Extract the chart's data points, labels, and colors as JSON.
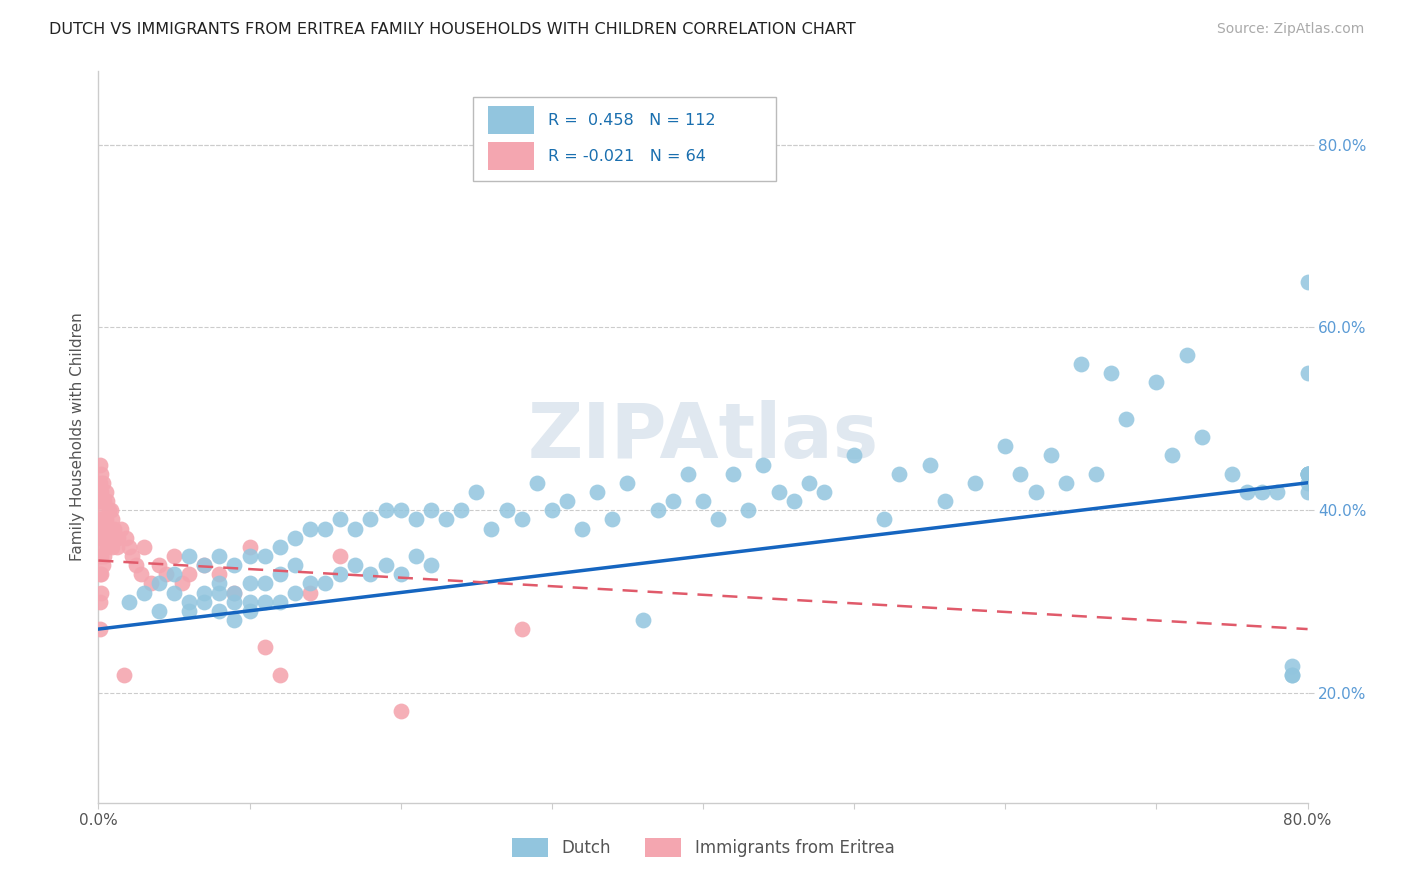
{
  "title": "DUTCH VS IMMIGRANTS FROM ERITREA FAMILY HOUSEHOLDS WITH CHILDREN CORRELATION CHART",
  "source": "Source: ZipAtlas.com",
  "ylabel": "Family Households with Children",
  "xlim": [
    0.0,
    0.8
  ],
  "ylim": [
    0.08,
    0.88
  ],
  "yticks": [
    0.2,
    0.4,
    0.6,
    0.8
  ],
  "ytick_labels": [
    "20.0%",
    "40.0%",
    "60.0%",
    "80.0%"
  ],
  "xticks": [
    0.0,
    0.1,
    0.2,
    0.3,
    0.4,
    0.5,
    0.6,
    0.7,
    0.8
  ],
  "xtick_labels": [
    "0.0%",
    "",
    "",
    "",
    "",
    "",
    "",
    "",
    "80.0%"
  ],
  "dutch_color": "#92c5de",
  "eritrea_color": "#f4a6b0",
  "dutch_line_color": "#1565c0",
  "eritrea_line_color": "#e05a6a",
  "legend_dutch_R": "R =  0.458",
  "legend_dutch_N": "N = 112",
  "legend_eritrea_R": "R = -0.021",
  "legend_eritrea_N": "N = 64",
  "watermark": "ZIPAtlas",
  "dutch_x": [
    0.02,
    0.03,
    0.04,
    0.04,
    0.05,
    0.05,
    0.06,
    0.06,
    0.06,
    0.07,
    0.07,
    0.07,
    0.08,
    0.08,
    0.08,
    0.08,
    0.09,
    0.09,
    0.09,
    0.09,
    0.1,
    0.1,
    0.1,
    0.1,
    0.11,
    0.11,
    0.11,
    0.12,
    0.12,
    0.12,
    0.13,
    0.13,
    0.13,
    0.14,
    0.14,
    0.15,
    0.15,
    0.16,
    0.16,
    0.17,
    0.17,
    0.18,
    0.18,
    0.19,
    0.19,
    0.2,
    0.2,
    0.21,
    0.21,
    0.22,
    0.22,
    0.23,
    0.24,
    0.25,
    0.26,
    0.27,
    0.28,
    0.29,
    0.3,
    0.31,
    0.32,
    0.33,
    0.34,
    0.35,
    0.36,
    0.37,
    0.38,
    0.39,
    0.4,
    0.41,
    0.42,
    0.43,
    0.44,
    0.45,
    0.46,
    0.47,
    0.48,
    0.5,
    0.52,
    0.53,
    0.55,
    0.56,
    0.58,
    0.6,
    0.61,
    0.62,
    0.63,
    0.64,
    0.65,
    0.66,
    0.67,
    0.68,
    0.7,
    0.71,
    0.72,
    0.73,
    0.75,
    0.76,
    0.77,
    0.78,
    0.79,
    0.79,
    0.79,
    0.8,
    0.8,
    0.8,
    0.8,
    0.8,
    0.8,
    0.8,
    0.8,
    0.8
  ],
  "dutch_y": [
    0.3,
    0.31,
    0.32,
    0.29,
    0.33,
    0.31,
    0.35,
    0.3,
    0.29,
    0.34,
    0.31,
    0.3,
    0.35,
    0.32,
    0.29,
    0.31,
    0.34,
    0.31,
    0.3,
    0.28,
    0.35,
    0.32,
    0.3,
    0.29,
    0.35,
    0.32,
    0.3,
    0.36,
    0.33,
    0.3,
    0.37,
    0.34,
    0.31,
    0.38,
    0.32,
    0.38,
    0.32,
    0.39,
    0.33,
    0.38,
    0.34,
    0.39,
    0.33,
    0.4,
    0.34,
    0.4,
    0.33,
    0.39,
    0.35,
    0.4,
    0.34,
    0.39,
    0.4,
    0.42,
    0.38,
    0.4,
    0.39,
    0.43,
    0.4,
    0.41,
    0.38,
    0.42,
    0.39,
    0.43,
    0.28,
    0.4,
    0.41,
    0.44,
    0.41,
    0.39,
    0.44,
    0.4,
    0.45,
    0.42,
    0.41,
    0.43,
    0.42,
    0.46,
    0.39,
    0.44,
    0.45,
    0.41,
    0.43,
    0.47,
    0.44,
    0.42,
    0.46,
    0.43,
    0.56,
    0.44,
    0.55,
    0.5,
    0.54,
    0.46,
    0.57,
    0.48,
    0.44,
    0.42,
    0.42,
    0.42,
    0.22,
    0.22,
    0.23,
    0.44,
    0.44,
    0.44,
    0.44,
    0.42,
    0.44,
    0.43,
    0.55,
    0.65
  ],
  "eritrea_x": [
    0.001,
    0.001,
    0.001,
    0.001,
    0.001,
    0.001,
    0.001,
    0.001,
    0.002,
    0.002,
    0.002,
    0.002,
    0.002,
    0.002,
    0.002,
    0.003,
    0.003,
    0.003,
    0.003,
    0.003,
    0.004,
    0.004,
    0.004,
    0.004,
    0.005,
    0.005,
    0.005,
    0.006,
    0.006,
    0.006,
    0.007,
    0.007,
    0.008,
    0.008,
    0.009,
    0.009,
    0.01,
    0.011,
    0.012,
    0.013,
    0.015,
    0.017,
    0.018,
    0.02,
    0.022,
    0.025,
    0.028,
    0.03,
    0.035,
    0.04,
    0.045,
    0.05,
    0.055,
    0.06,
    0.07,
    0.08,
    0.09,
    0.1,
    0.11,
    0.12,
    0.14,
    0.16,
    0.2,
    0.28
  ],
  "eritrea_y": [
    0.45,
    0.43,
    0.41,
    0.38,
    0.35,
    0.33,
    0.3,
    0.27,
    0.44,
    0.42,
    0.39,
    0.37,
    0.35,
    0.33,
    0.31,
    0.43,
    0.4,
    0.38,
    0.36,
    0.34,
    0.41,
    0.39,
    0.37,
    0.35,
    0.42,
    0.39,
    0.37,
    0.41,
    0.38,
    0.36,
    0.4,
    0.37,
    0.4,
    0.37,
    0.39,
    0.36,
    0.38,
    0.37,
    0.36,
    0.37,
    0.38,
    0.22,
    0.37,
    0.36,
    0.35,
    0.34,
    0.33,
    0.36,
    0.32,
    0.34,
    0.33,
    0.35,
    0.32,
    0.33,
    0.34,
    0.33,
    0.31,
    0.36,
    0.25,
    0.22,
    0.31,
    0.35,
    0.18,
    0.27
  ]
}
